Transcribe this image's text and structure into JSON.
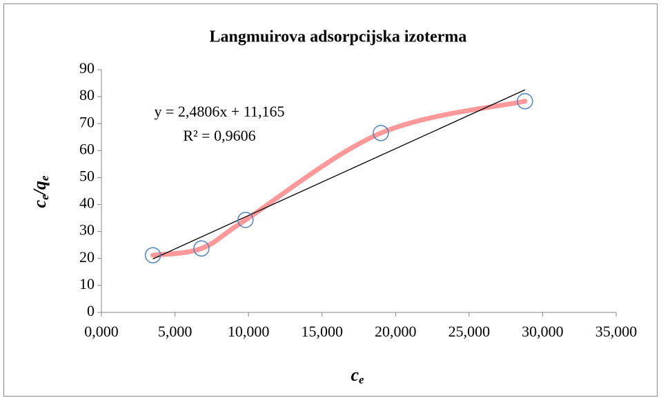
{
  "chart_data": {
    "type": "scatter",
    "title": "Langmuirova adsorpcijska izoterma",
    "x_label": {
      "main": "c",
      "sub": "e"
    },
    "y_label": {
      "main1": "c",
      "sub1": "e",
      "main2": "/q",
      "sub2": "e"
    },
    "annotations": [
      "y = 2,4806x + 11,165",
      "R² = 0,9606"
    ],
    "x": [
      3.5,
      6.8,
      9.8,
      19.0,
      28.8
    ],
    "series": [
      {
        "color": "#ff9999",
        "marker_color": "#4f81bd",
        "values": [
          21.2,
          23.7,
          34.3,
          66.5,
          78.3
        ]
      }
    ],
    "trendline": true,
    "xlim": [
      0,
      35
    ],
    "xticks": [
      {
        "value": 0,
        "label": "0,000"
      },
      {
        "value": 5,
        "label": "5,000"
      },
      {
        "value": 10,
        "label": "10,000"
      },
      {
        "value": 15,
        "label": "15,000"
      },
      {
        "value": 20,
        "label": "20,000"
      },
      {
        "value": 25,
        "label": "25,000"
      },
      {
        "value": 30,
        "label": "30,000"
      },
      {
        "value": 35,
        "label": "35,000"
      }
    ],
    "ylim": [
      0,
      90
    ],
    "yticks": [
      0,
      10,
      20,
      30,
      40,
      50,
      60,
      70,
      80,
      90
    ],
    "grid": false
  }
}
